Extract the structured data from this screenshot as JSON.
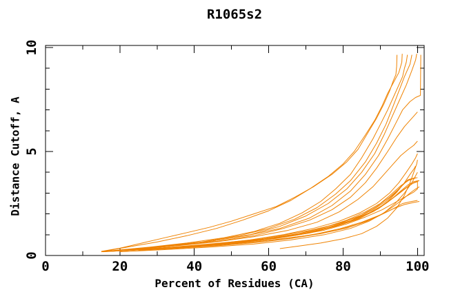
{
  "chart_data": {
    "type": "line",
    "title": "R1065s2",
    "xlabel": "Percent of Residues (CA)",
    "ylabel": "Distance Cutoff, A",
    "xlim": [
      0,
      101.8
    ],
    "ylim": [
      0,
      10.1
    ],
    "xticks_major": [
      0,
      20,
      40,
      60,
      80,
      100
    ],
    "xticks_minor": [
      10,
      30,
      50,
      70,
      90
    ],
    "yticks_major": [
      0,
      5,
      10
    ],
    "yticks_minor": [
      1,
      2,
      3,
      4,
      6,
      7,
      8,
      9
    ],
    "grid": false,
    "legend": "none",
    "line_color": "#ef8200",
    "axis_color": "#000000",
    "background_color": "#ffffff",
    "curves": [
      [
        [
          15,
          0.2
        ],
        [
          20,
          0.35
        ],
        [
          26,
          0.6
        ],
        [
          32,
          0.85
        ],
        [
          38,
          1.1
        ],
        [
          44,
          1.35
        ],
        [
          50,
          1.65
        ],
        [
          56,
          2.0
        ],
        [
          62,
          2.35
        ],
        [
          67,
          2.8
        ],
        [
          72,
          3.3
        ],
        [
          77,
          3.9
        ],
        [
          81,
          4.5
        ],
        [
          84,
          5.1
        ],
        [
          87,
          6.0
        ],
        [
          89,
          6.6
        ],
        [
          91,
          7.3
        ],
        [
          92.5,
          7.9
        ],
        [
          93.5,
          8.4
        ],
        [
          94.2,
          8.7
        ],
        [
          94.4,
          9.1
        ],
        [
          94.5,
          9.65
        ]
      ],
      [
        [
          15.5,
          0.2
        ],
        [
          22,
          0.4
        ],
        [
          30,
          0.65
        ],
        [
          38,
          0.95
        ],
        [
          46,
          1.3
        ],
        [
          53,
          1.7
        ],
        [
          60,
          2.15
        ],
        [
          66,
          2.65
        ],
        [
          71,
          3.2
        ],
        [
          76,
          3.8
        ],
        [
          80,
          4.4
        ],
        [
          83,
          5.0
        ],
        [
          86,
          5.8
        ],
        [
          88.5,
          6.5
        ],
        [
          90.5,
          7.2
        ],
        [
          92,
          7.8
        ],
        [
          93.5,
          8.3
        ],
        [
          95,
          8.8
        ],
        [
          95.8,
          9.3
        ],
        [
          95.9,
          9.7
        ]
      ],
      [
        [
          17,
          0.22
        ],
        [
          28,
          0.4
        ],
        [
          38,
          0.6
        ],
        [
          48,
          0.85
        ],
        [
          56,
          1.15
        ],
        [
          63,
          1.55
        ],
        [
          69,
          2.05
        ],
        [
          74,
          2.6
        ],
        [
          78,
          3.2
        ],
        [
          82,
          3.9
        ],
        [
          85,
          4.7
        ],
        [
          88,
          5.6
        ],
        [
          90,
          6.3
        ],
        [
          92,
          7.0
        ],
        [
          93.5,
          7.6
        ],
        [
          95,
          8.2
        ],
        [
          96,
          8.6
        ],
        [
          96.5,
          9.0
        ],
        [
          97,
          9.3
        ],
        [
          97.3,
          9.65
        ]
      ],
      [
        [
          18,
          0.22
        ],
        [
          30,
          0.42
        ],
        [
          42,
          0.65
        ],
        [
          52,
          0.95
        ],
        [
          60,
          1.3
        ],
        [
          67,
          1.75
        ],
        [
          73,
          2.3
        ],
        [
          78,
          2.95
        ],
        [
          82,
          3.6
        ],
        [
          86,
          4.5
        ],
        [
          89,
          5.4
        ],
        [
          91.5,
          6.3
        ],
        [
          93.5,
          7.2
        ],
        [
          95,
          7.9
        ],
        [
          96.5,
          8.6
        ],
        [
          98,
          9.2
        ],
        [
          98.5,
          9.65
        ]
      ],
      [
        [
          20,
          0.25
        ],
        [
          33,
          0.45
        ],
        [
          45,
          0.7
        ],
        [
          55,
          1.0
        ],
        [
          63,
          1.4
        ],
        [
          70,
          1.9
        ],
        [
          76,
          2.5
        ],
        [
          81,
          3.2
        ],
        [
          85,
          4.0
        ],
        [
          88.5,
          4.9
        ],
        [
          91,
          5.8
        ],
        [
          93,
          6.6
        ],
        [
          95,
          7.4
        ],
        [
          97,
          8.2
        ],
        [
          98.5,
          8.9
        ],
        [
          99.5,
          9.4
        ],
        [
          99.8,
          9.7
        ]
      ],
      [
        [
          19,
          0.25
        ],
        [
          32,
          0.45
        ],
        [
          44,
          0.68
        ],
        [
          54,
          0.95
        ],
        [
          63,
          1.3
        ],
        [
          71,
          1.8
        ],
        [
          77,
          2.4
        ],
        [
          82,
          3.1
        ],
        [
          86,
          3.9
        ],
        [
          89.5,
          4.8
        ],
        [
          92,
          5.6
        ],
        [
          94,
          6.3
        ],
        [
          96,
          7.0
        ],
        [
          98,
          7.4
        ],
        [
          99.5,
          7.6
        ],
        [
          100.8,
          7.7
        ],
        [
          100.9,
          9.65
        ]
      ],
      [
        [
          21,
          0.25
        ],
        [
          34,
          0.45
        ],
        [
          46,
          0.68
        ],
        [
          56,
          0.95
        ],
        [
          64,
          1.3
        ],
        [
          71,
          1.7
        ],
        [
          77,
          2.2
        ],
        [
          82,
          2.8
        ],
        [
          86,
          3.5
        ],
        [
          89,
          4.2
        ],
        [
          92,
          5.0
        ],
        [
          94.5,
          5.7
        ],
        [
          96.5,
          6.2
        ],
        [
          98,
          6.5
        ],
        [
          99,
          6.7
        ],
        [
          100,
          6.9
        ]
      ],
      [
        [
          16,
          0.2
        ],
        [
          26,
          0.33
        ],
        [
          36,
          0.48
        ],
        [
          46,
          0.66
        ],
        [
          56,
          0.9
        ],
        [
          65,
          1.2
        ],
        [
          73,
          1.6
        ],
        [
          79,
          2.1
        ],
        [
          84,
          2.7
        ],
        [
          88,
          3.3
        ],
        [
          91,
          3.9
        ],
        [
          93.5,
          4.4
        ],
        [
          95.5,
          4.8
        ],
        [
          97.5,
          5.1
        ],
        [
          99,
          5.3
        ],
        [
          100,
          5.5
        ]
      ],
      [
        [
          63,
          0.33
        ],
        [
          68,
          0.45
        ],
        [
          74,
          0.6
        ],
        [
          80,
          0.8
        ],
        [
          85,
          1.05
        ],
        [
          89,
          1.4
        ],
        [
          92,
          1.8
        ],
        [
          94.5,
          2.3
        ],
        [
          96.5,
          2.9
        ],
        [
          98,
          3.5
        ],
        [
          99,
          4.0
        ],
        [
          99.8,
          4.4
        ],
        [
          100,
          4.6
        ]
      ],
      [
        [
          20,
          0.18
        ],
        [
          32,
          0.28
        ],
        [
          44,
          0.4
        ],
        [
          56,
          0.55
        ],
        [
          66,
          0.75
        ],
        [
          75,
          1.0
        ],
        [
          82,
          1.3
        ],
        [
          87,
          1.65
        ],
        [
          91,
          2.05
        ],
        [
          94,
          2.5
        ],
        [
          96.5,
          3.0
        ],
        [
          98.5,
          3.5
        ],
        [
          100,
          4.0
        ]
      ],
      [
        [
          15,
          0.18
        ],
        [
          24,
          0.28
        ],
        [
          34,
          0.4
        ],
        [
          44,
          0.55
        ],
        [
          54,
          0.72
        ],
        [
          63,
          0.95
        ],
        [
          71,
          1.2
        ],
        [
          78,
          1.5
        ],
        [
          84,
          1.85
        ],
        [
          88,
          2.2
        ],
        [
          91.5,
          2.6
        ],
        [
          94,
          3.0
        ],
        [
          96,
          3.4
        ],
        [
          97.5,
          3.65
        ],
        [
          98.5,
          3.7
        ]
      ],
      [
        [
          16,
          0.2
        ],
        [
          27,
          0.3
        ],
        [
          38,
          0.43
        ],
        [
          48,
          0.58
        ],
        [
          58,
          0.78
        ],
        [
          67,
          1.0
        ],
        [
          74,
          1.3
        ],
        [
          80,
          1.6
        ],
        [
          85,
          1.95
        ],
        [
          89,
          2.35
        ],
        [
          92.5,
          2.8
        ],
        [
          95,
          3.2
        ],
        [
          97,
          3.55
        ],
        [
          98.5,
          3.7
        ],
        [
          99.5,
          3.75
        ]
      ],
      [
        [
          17,
          0.2
        ],
        [
          28,
          0.32
        ],
        [
          39,
          0.45
        ],
        [
          49,
          0.6
        ],
        [
          59,
          0.8
        ],
        [
          68,
          1.05
        ],
        [
          75,
          1.35
        ],
        [
          81,
          1.7
        ],
        [
          86,
          2.1
        ],
        [
          90,
          2.5
        ],
        [
          93,
          2.95
        ],
        [
          95.5,
          3.35
        ],
        [
          97.5,
          3.6
        ],
        [
          99,
          3.7
        ],
        [
          100,
          3.75
        ]
      ],
      [
        [
          15.5,
          0.18
        ],
        [
          26,
          0.28
        ],
        [
          37,
          0.4
        ],
        [
          47,
          0.55
        ],
        [
          57,
          0.73
        ],
        [
          66,
          0.95
        ],
        [
          74,
          1.22
        ],
        [
          80,
          1.52
        ],
        [
          85,
          1.85
        ],
        [
          89.5,
          2.25
        ],
        [
          93,
          2.7
        ],
        [
          95.5,
          3.1
        ],
        [
          97.5,
          3.4
        ],
        [
          99,
          3.55
        ],
        [
          100.3,
          3.6
        ]
      ],
      [
        [
          16.5,
          0.2
        ],
        [
          28,
          0.3
        ],
        [
          40,
          0.44
        ],
        [
          50,
          0.6
        ],
        [
          60,
          0.8
        ],
        [
          69,
          1.05
        ],
        [
          76,
          1.35
        ],
        [
          82,
          1.68
        ],
        [
          87,
          2.05
        ],
        [
          91,
          2.45
        ],
        [
          94,
          2.85
        ],
        [
          96.5,
          3.2
        ],
        [
          98.5,
          3.45
        ],
        [
          100,
          3.55
        ]
      ],
      [
        [
          18,
          0.22
        ],
        [
          30,
          0.33
        ],
        [
          42,
          0.47
        ],
        [
          52,
          0.63
        ],
        [
          62,
          0.83
        ],
        [
          70,
          1.08
        ],
        [
          77,
          1.38
        ],
        [
          83,
          1.72
        ],
        [
          88,
          2.1
        ],
        [
          91.5,
          2.5
        ],
        [
          94.5,
          2.9
        ],
        [
          97,
          3.25
        ],
        [
          99,
          3.5
        ],
        [
          100.5,
          3.6
        ]
      ],
      [
        [
          17,
          0.2
        ],
        [
          29,
          0.3
        ],
        [
          41,
          0.43
        ],
        [
          51,
          0.58
        ],
        [
          61,
          0.75
        ],
        [
          70,
          0.95
        ],
        [
          78,
          1.2
        ],
        [
          84,
          1.5
        ],
        [
          89,
          1.85
        ],
        [
          93,
          2.2
        ],
        [
          96,
          2.5
        ],
        [
          98.5,
          2.6
        ],
        [
          100,
          2.65
        ]
      ],
      [
        [
          19,
          0.22
        ],
        [
          31,
          0.32
        ],
        [
          43,
          0.45
        ],
        [
          53,
          0.6
        ],
        [
          63,
          0.78
        ],
        [
          72,
          1.0
        ],
        [
          79,
          1.28
        ],
        [
          85,
          1.6
        ],
        [
          90,
          1.95
        ],
        [
          93.5,
          2.25
        ],
        [
          96.5,
          2.45
        ],
        [
          99,
          2.55
        ],
        [
          100.5,
          2.6
        ]
      ],
      [
        [
          16,
          0.19
        ],
        [
          27,
          0.29
        ],
        [
          38,
          0.41
        ],
        [
          48,
          0.56
        ],
        [
          58,
          0.74
        ],
        [
          67,
          0.96
        ],
        [
          75,
          1.22
        ],
        [
          81,
          1.52
        ],
        [
          86,
          1.85
        ],
        [
          90.5,
          2.2
        ],
        [
          94,
          2.55
        ],
        [
          97,
          2.85
        ],
        [
          99,
          3.05
        ],
        [
          100,
          3.2
        ],
        [
          100,
          3.55
        ]
      ],
      [
        [
          18,
          0.21
        ],
        [
          30,
          0.32
        ],
        [
          42,
          0.46
        ],
        [
          52,
          0.62
        ],
        [
          62,
          0.82
        ],
        [
          71,
          1.08
        ],
        [
          78,
          1.4
        ],
        [
          84,
          1.75
        ],
        [
          88.5,
          2.15
        ],
        [
          92,
          2.6
        ],
        [
          94.5,
          3.05
        ],
        [
          96.5,
          3.5
        ],
        [
          98,
          3.9
        ],
        [
          99,
          4.15
        ],
        [
          99.5,
          4.3
        ]
      ],
      [
        [
          20,
          0.24
        ],
        [
          33,
          0.38
        ],
        [
          45,
          0.55
        ],
        [
          55,
          0.75
        ],
        [
          64,
          1.0
        ],
        [
          72,
          1.3
        ],
        [
          79,
          1.65
        ],
        [
          84.5,
          2.05
        ],
        [
          89,
          2.5
        ],
        [
          92.5,
          3.0
        ],
        [
          95,
          3.5
        ],
        [
          97,
          4.0
        ],
        [
          98.5,
          4.4
        ],
        [
          99.5,
          4.7
        ],
        [
          100,
          4.9
        ]
      ],
      [
        [
          25,
          0.25
        ],
        [
          36,
          0.35
        ],
        [
          47,
          0.48
        ],
        [
          57,
          0.63
        ],
        [
          66,
          0.82
        ],
        [
          74,
          1.05
        ],
        [
          81,
          1.32
        ],
        [
          86.5,
          1.65
        ],
        [
          90.5,
          2.0
        ],
        [
          93.5,
          2.35
        ],
        [
          96,
          2.7
        ],
        [
          98,
          3.0
        ],
        [
          99.5,
          3.2
        ],
        [
          100.5,
          3.3
        ]
      ]
    ]
  }
}
